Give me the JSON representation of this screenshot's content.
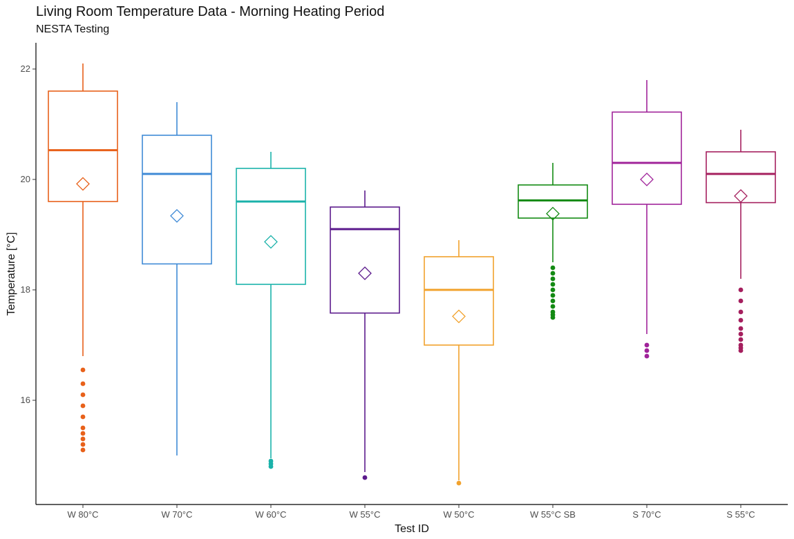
{
  "chart_data": {
    "type": "boxplot",
    "title": "Living Room Temperature Data - Morning Heating Period",
    "subtitle": "NESTA Testing",
    "xlabel": "Test ID",
    "ylabel": "Temperature [°C]",
    "ylim": [
      14.2,
      22.5
    ],
    "yticks": [
      16,
      18,
      20,
      22
    ],
    "grid": false,
    "legend": "none",
    "series": [
      {
        "category": "W 80°C",
        "color": "#E8611A",
        "whisker_low": 16.8,
        "q1": 19.6,
        "median": 20.53,
        "q3": 21.6,
        "whisker_high": 22.1,
        "mean": 19.92,
        "outliers": [
          16.55,
          16.3,
          16.1,
          15.9,
          15.7,
          15.5,
          15.4,
          15.3,
          15.2,
          15.1
        ]
      },
      {
        "category": "W 70°C",
        "color": "#3F8AD6",
        "whisker_low": 15.0,
        "q1": 18.47,
        "median": 20.1,
        "q3": 20.8,
        "whisker_high": 21.4,
        "mean": 19.34,
        "outliers": []
      },
      {
        "category": "W 60°C",
        "color": "#1AB2AA",
        "whisker_low": 14.95,
        "q1": 18.1,
        "median": 19.6,
        "q3": 20.2,
        "whisker_high": 20.5,
        "mean": 18.87,
        "outliers": [
          14.9,
          14.85,
          14.8
        ]
      },
      {
        "category": "W 55°C",
        "color": "#5B1A8C",
        "whisker_low": 14.7,
        "q1": 17.58,
        "median": 19.1,
        "q3": 19.5,
        "whisker_high": 19.8,
        "mean": 18.3,
        "outliers": [
          14.6
        ]
      },
      {
        "category": "W 50°C",
        "color": "#F2A22C",
        "whisker_low": 14.55,
        "q1": 17.0,
        "median": 18.0,
        "q3": 18.6,
        "whisker_high": 18.9,
        "mean": 17.52,
        "outliers": [
          14.5
        ]
      },
      {
        "category": "W 55°C SB",
        "color": "#138A13",
        "whisker_low": 18.5,
        "q1": 19.3,
        "median": 19.62,
        "q3": 19.9,
        "whisker_high": 20.3,
        "mean": 19.38,
        "outliers": [
          18.4,
          18.3,
          18.2,
          18.1,
          18.0,
          17.9,
          17.8,
          17.7,
          17.6,
          17.55,
          17.5
        ]
      },
      {
        "category": "S 70°C",
        "color": "#A0239A",
        "whisker_low": 17.2,
        "q1": 19.55,
        "median": 20.3,
        "q3": 21.22,
        "whisker_high": 21.8,
        "mean": 20.0,
        "outliers": [
          17.0,
          16.9,
          16.8
        ]
      },
      {
        "category": "S 55°C",
        "color": "#A51F5E",
        "whisker_low": 18.2,
        "q1": 19.58,
        "median": 20.1,
        "q3": 20.5,
        "whisker_high": 20.9,
        "mean": 19.7,
        "outliers": [
          18.0,
          17.8,
          17.6,
          17.45,
          17.3,
          17.2,
          17.1,
          17.0,
          16.95,
          16.9
        ]
      }
    ]
  }
}
